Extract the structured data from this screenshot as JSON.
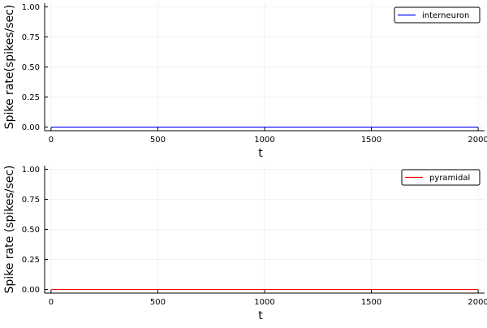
{
  "chart_data": [
    {
      "type": "line",
      "xlabel": "t",
      "ylabel": "Spike rate(spikes/sec)",
      "xlim": [
        -30,
        2030
      ],
      "ylim": [
        -0.03,
        1.03
      ],
      "xticks": [
        0,
        500,
        1000,
        1500,
        2000
      ],
      "xtick_labels": [
        "0",
        "500",
        "1000",
        "1500",
        "2000"
      ],
      "yticks": [
        0.0,
        0.25,
        0.5,
        0.75,
        1.0
      ],
      "ytick_labels": [
        "0.00",
        "0.25",
        "0.50",
        "0.75",
        "1.00"
      ],
      "grid": true,
      "legend_position": "top-right",
      "series": [
        {
          "name": "interneuron",
          "color": "#0000ff",
          "x": [
            0,
            2000
          ],
          "y": [
            0,
            0
          ]
        }
      ]
    },
    {
      "type": "line",
      "xlabel": "t",
      "ylabel": "Spike rate (spikes/sec)",
      "xlim": [
        -30,
        2030
      ],
      "ylim": [
        -0.03,
        1.03
      ],
      "xticks": [
        0,
        500,
        1000,
        1500,
        2000
      ],
      "xtick_labels": [
        "0",
        "500",
        "1000",
        "1500",
        "2000"
      ],
      "yticks": [
        0.0,
        0.25,
        0.5,
        0.75,
        1.0
      ],
      "ytick_labels": [
        "0.00",
        "0.25",
        "0.50",
        "0.75",
        "1.00"
      ],
      "grid": true,
      "legend_position": "top-right",
      "series": [
        {
          "name": "pyramidal",
          "color": "#ff0000",
          "x": [
            0,
            2000
          ],
          "y": [
            0,
            0
          ]
        }
      ]
    }
  ]
}
